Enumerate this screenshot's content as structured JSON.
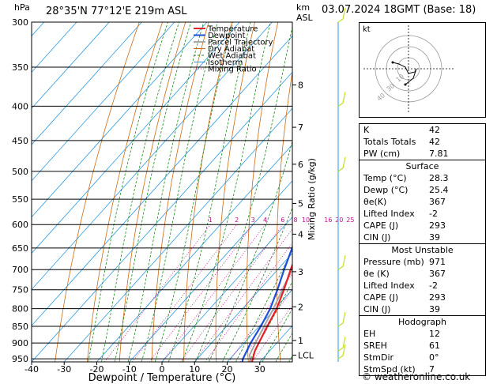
{
  "header": {
    "location": "28°35'N  77°12'E  219m  ASL",
    "datetime": "03.07.2024  18GMT  (Base: 18)",
    "hpa_label": "hPa",
    "km_label": "km",
    "asl_label": "ASL",
    "credit": "© weatheronline.co.uk"
  },
  "chart_data": {
    "type": "skew-t",
    "xlabel": "Dewpoint / Temperature (°C)",
    "ylabel": "",
    "y2label": "Mixing Ratio (g/kg)",
    "xlim": [
      -40,
      40
    ],
    "ylim": [
      960,
      300
    ],
    "pressure_ticks": [
      300,
      350,
      400,
      450,
      500,
      550,
      600,
      650,
      700,
      750,
      800,
      850,
      900,
      950
    ],
    "temp_ticks": [
      -40,
      -30,
      -20,
      -10,
      0,
      10,
      20,
      30
    ],
    "km_ticks": [
      {
        "label": "8",
        "p": 372
      },
      {
        "label": "7",
        "p": 430
      },
      {
        "label": "6",
        "p": 488
      },
      {
        "label": "5",
        "p": 558
      },
      {
        "label": "4",
        "p": 620
      },
      {
        "label": "3",
        "p": 705
      },
      {
        "label": "2",
        "p": 795
      },
      {
        "label": "1",
        "p": 892
      },
      {
        "label": "LCL",
        "p": 938
      }
    ],
    "mixing_ratio_labels": [
      "1",
      "2",
      "3",
      "4",
      "6",
      "8",
      "10",
      "16",
      "20",
      "25"
    ],
    "legend": [
      "Temperature",
      "Dewpoint",
      "Parcel Trajectory",
      "Dry Adiabat",
      "Wet Adiabat",
      "Isotherm",
      "Mixing Ratio"
    ],
    "legend_colors": [
      "#e8202a",
      "#1f4fd8",
      "#a8a8a8",
      "#d06a10",
      "#1a8a1a",
      "#2a9ae0",
      "#c0148c"
    ],
    "series": [
      {
        "name": "Temperature",
        "color": "#e8202a",
        "p": [
          971,
          950,
          925,
          900,
          850,
          800,
          750,
          700,
          650,
          600,
          550,
          500,
          450,
          400,
          350
        ],
        "t": [
          28.3,
          27,
          25.5,
          24.5,
          22.5,
          20.5,
          17.5,
          14,
          10.5,
          6.5,
          2.5,
          -3.5,
          -9.5,
          -16.5,
          -25
        ]
      },
      {
        "name": "Dewpoint",
        "color": "#1f4fd8",
        "p": [
          971,
          950,
          925,
          900,
          850,
          800,
          750,
          700,
          650,
          600,
          550,
          500,
          450,
          400,
          350
        ],
        "t": [
          25.4,
          24,
          23,
          22,
          20.5,
          18.5,
          15.5,
          12,
          8.5,
          4,
          -1,
          -7,
          -13,
          -20,
          -28
        ]
      },
      {
        "name": "Parcel Trajectory",
        "color": "#a8a8a8",
        "p": [
          971,
          938,
          900,
          850,
          800,
          750,
          700,
          650,
          600,
          550,
          500,
          450,
          400,
          350
        ],
        "t": [
          28.3,
          25,
          23.5,
          21.5,
          19.5,
          17,
          14.5,
          11.5,
          8,
          4,
          -0.5,
          -6,
          -12.5,
          -20.5
        ]
      }
    ],
    "wind_barb_color": "#bfe020"
  },
  "hodograph": {
    "label": "kt",
    "ring_labels": [
      "10",
      "30",
      "40"
    ]
  },
  "indices": [
    {
      "key": "K",
      "value": "42"
    },
    {
      "key": "Totals Totals",
      "value": "42"
    },
    {
      "key": "PW (cm)",
      "value": "7.81"
    }
  ],
  "surface": {
    "title": "Surface",
    "rows": [
      {
        "key": "Temp (°C)",
        "value": "28.3"
      },
      {
        "key": "Dewp (°C)",
        "value": "25.4"
      },
      {
        "key": "θe(K)",
        "value": "367"
      },
      {
        "key": "Lifted Index",
        "value": "-2"
      },
      {
        "key": "CAPE (J)",
        "value": "293"
      },
      {
        "key": "CIN (J)",
        "value": "39"
      }
    ]
  },
  "most_unstable": {
    "title": "Most Unstable",
    "rows": [
      {
        "key": "Pressure (mb)",
        "value": "971"
      },
      {
        "key": "θe (K)",
        "value": "367"
      },
      {
        "key": "Lifted Index",
        "value": "-2"
      },
      {
        "key": "CAPE (J)",
        "value": "293"
      },
      {
        "key": "CIN (J)",
        "value": "39"
      }
    ]
  },
  "hodograph_table": {
    "title": "Hodograph",
    "rows": [
      {
        "key": "EH",
        "value": "12"
      },
      {
        "key": "SREH",
        "value": "61"
      },
      {
        "key": "StmDir",
        "value": "0°"
      },
      {
        "key": "StmSpd (kt)",
        "value": "7"
      }
    ]
  }
}
